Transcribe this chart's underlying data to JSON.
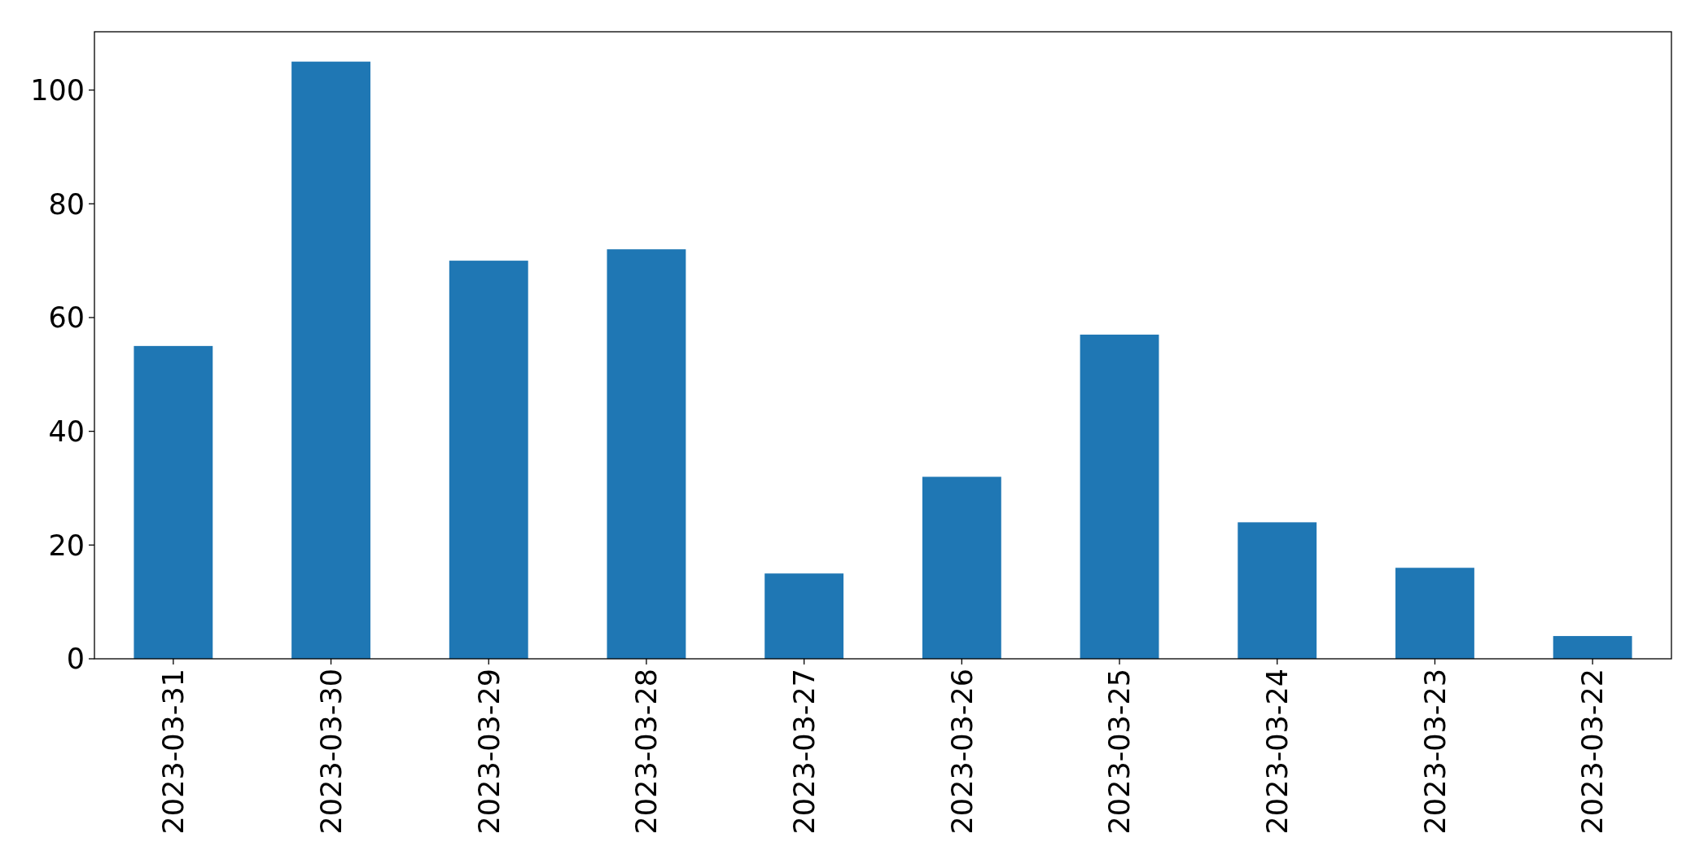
{
  "chart_data": {
    "type": "bar",
    "categories": [
      "2023-03-31",
      "2023-03-30",
      "2023-03-29",
      "2023-03-28",
      "2023-03-27",
      "2023-03-26",
      "2023-03-25",
      "2023-03-24",
      "2023-03-23",
      "2023-03-22"
    ],
    "values": [
      55,
      105,
      70,
      72,
      15,
      32,
      57,
      24,
      16,
      4
    ],
    "color": "#1f77b4",
    "ylim": [
      0,
      110.25
    ],
    "yticks": [
      0,
      20,
      40,
      60,
      80,
      100
    ],
    "grid": false
  }
}
